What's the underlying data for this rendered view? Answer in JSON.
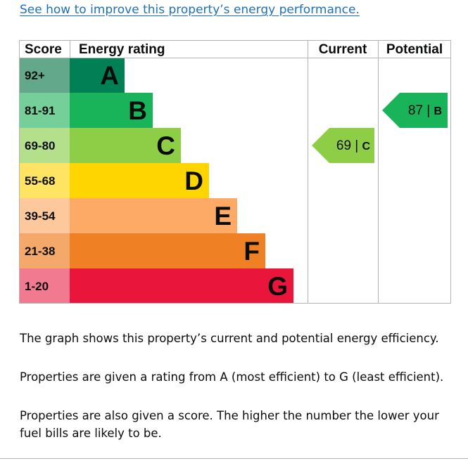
{
  "link_text": "See how to improve this property’s energy performance.",
  "chart_data": {
    "type": "bar",
    "headers": {
      "score": "Score",
      "rating": "Energy rating",
      "current": "Current",
      "potential": "Potential"
    },
    "bands": [
      {
        "letter": "A",
        "range": "92+",
        "color": "#008054",
        "range_color": "#63a88a",
        "text_color": "#0b0c0c"
      },
      {
        "letter": "B",
        "range": "81-91",
        "color": "#19b459",
        "range_color": "#74cf98",
        "text_color": "#0b0c0c"
      },
      {
        "letter": "C",
        "range": "69-80",
        "color": "#8dce46",
        "range_color": "#b4e08b",
        "text_color": "#0b0c0c"
      },
      {
        "letter": "D",
        "range": "55-68",
        "color": "#ffd500",
        "range_color": "#ffe463",
        "text_color": "#0b0c0c"
      },
      {
        "letter": "E",
        "range": "39-54",
        "color": "#fcaa65",
        "range_color": "#fdc89b",
        "text_color": "#0b0c0c"
      },
      {
        "letter": "F",
        "range": "21-38",
        "color": "#ef8023",
        "range_color": "#f4a96a",
        "text_color": "#0b0c0c"
      },
      {
        "letter": "G",
        "range": "1-20",
        "color": "#e9153b",
        "range_color": "#f27a90",
        "text_color": "#0b0c0c"
      }
    ],
    "current": {
      "score": 69,
      "rating": "C",
      "color": "#8dce46",
      "text_color": "#0b0c0c"
    },
    "potential": {
      "score": 87,
      "rating": "B",
      "color": "#19b459",
      "text_color": "#0b0c0c"
    }
  },
  "paragraphs": [
    "The graph shows this property’s current and potential energy efficiency.",
    "Properties are given a rating from A (most efficient) to G (least efficient).",
    "Properties are also given a score. The higher the number the lower your fuel bills are likely to be."
  ]
}
